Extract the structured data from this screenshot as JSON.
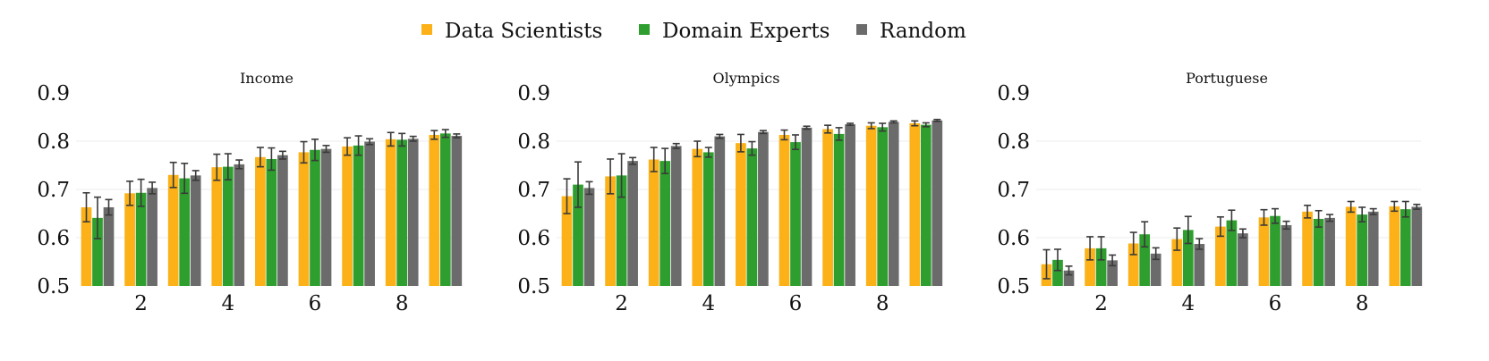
{
  "legend": [
    {
      "name": "Data Scientists",
      "color": "#FBB117"
    },
    {
      "name": "Domain Experts",
      "color": "#2E9F2E"
    },
    {
      "name": "Random",
      "color": "#6B6B6B"
    }
  ],
  "chart_data": [
    {
      "type": "bar",
      "title": "Income",
      "x": [
        1,
        2,
        3,
        4,
        5,
        6,
        7,
        8,
        9
      ],
      "xticks": [
        "2",
        "4",
        "6",
        "8"
      ],
      "yticks": [
        "0.5",
        "0.6",
        "0.7",
        "0.8",
        "0.9"
      ],
      "ylim": [
        0.5,
        0.9
      ],
      "grid": true,
      "legend_position": "top-center",
      "series": [
        {
          "name": "Data Scientists",
          "color": "#FBB117",
          "values": [
            0.663,
            0.692,
            0.73,
            0.746,
            0.767,
            0.777,
            0.789,
            0.804,
            0.813
          ],
          "errors": [
            0.03,
            0.025,
            0.026,
            0.027,
            0.02,
            0.022,
            0.018,
            0.014,
            0.009
          ]
        },
        {
          "name": "Domain Experts",
          "color": "#2E9F2E",
          "values": [
            0.641,
            0.693,
            0.723,
            0.747,
            0.763,
            0.782,
            0.791,
            0.803,
            0.816
          ],
          "errors": [
            0.043,
            0.028,
            0.031,
            0.027,
            0.023,
            0.022,
            0.02,
            0.013,
            0.008
          ]
        },
        {
          "name": "Random",
          "color": "#6B6B6B",
          "values": [
            0.663,
            0.703,
            0.729,
            0.752,
            0.771,
            0.784,
            0.799,
            0.805,
            0.811
          ],
          "errors": [
            0.016,
            0.012,
            0.01,
            0.009,
            0.008,
            0.007,
            0.006,
            0.005,
            0.004
          ]
        }
      ]
    },
    {
      "type": "bar",
      "title": "Olympics",
      "x": [
        1,
        2,
        3,
        4,
        5,
        6,
        7,
        8,
        9
      ],
      "xticks": [
        "2",
        "4",
        "6",
        "8"
      ],
      "yticks": [
        "0.5",
        "0.6",
        "0.7",
        "0.8",
        "0.9"
      ],
      "ylim": [
        0.5,
        0.9
      ],
      "grid": true,
      "series": [
        {
          "name": "Data Scientists",
          "color": "#FBB117",
          "values": [
            0.686,
            0.727,
            0.762,
            0.784,
            0.796,
            0.813,
            0.825,
            0.832,
            0.837
          ],
          "errors": [
            0.036,
            0.036,
            0.025,
            0.016,
            0.018,
            0.01,
            0.008,
            0.006,
            0.005
          ]
        },
        {
          "name": "Domain Experts",
          "color": "#2E9F2E",
          "values": [
            0.71,
            0.729,
            0.759,
            0.777,
            0.785,
            0.798,
            0.815,
            0.829,
            0.834
          ],
          "errors": [
            0.047,
            0.045,
            0.026,
            0.01,
            0.014,
            0.015,
            0.013,
            0.008,
            0.004
          ]
        },
        {
          "name": "Random",
          "color": "#6B6B6B",
          "values": [
            0.703,
            0.759,
            0.79,
            0.81,
            0.819,
            0.828,
            0.835,
            0.84,
            0.843
          ],
          "errors": [
            0.013,
            0.007,
            0.005,
            0.004,
            0.003,
            0.003,
            0.002,
            0.002,
            0.002
          ]
        }
      ]
    },
    {
      "type": "bar",
      "title": "Portuguese",
      "x": [
        1,
        2,
        3,
        4,
        5,
        6,
        7,
        8,
        9
      ],
      "xticks": [
        "2",
        "4",
        "6",
        "8"
      ],
      "yticks": [
        "0.5",
        "0.6",
        "0.7",
        "0.8",
        "0.9"
      ],
      "ylim": [
        0.5,
        0.9
      ],
      "grid": true,
      "series": [
        {
          "name": "Data Scientists",
          "color": "#FBB117",
          "values": [
            0.545,
            0.578,
            0.588,
            0.597,
            0.623,
            0.642,
            0.654,
            0.664,
            0.665
          ],
          "errors": [
            0.03,
            0.024,
            0.023,
            0.023,
            0.02,
            0.016,
            0.013,
            0.011,
            0.01
          ]
        },
        {
          "name": "Domain Experts",
          "color": "#2E9F2E",
          "values": [
            0.554,
            0.578,
            0.607,
            0.616,
            0.636,
            0.645,
            0.639,
            0.648,
            0.659
          ],
          "errors": [
            0.022,
            0.024,
            0.026,
            0.028,
            0.021,
            0.015,
            0.017,
            0.015,
            0.016
          ]
        },
        {
          "name": "Random",
          "color": "#6B6B6B",
          "values": [
            0.532,
            0.553,
            0.567,
            0.587,
            0.609,
            0.626,
            0.641,
            0.654,
            0.664
          ],
          "errors": [
            0.009,
            0.011,
            0.012,
            0.011,
            0.009,
            0.008,
            0.007,
            0.006,
            0.005
          ]
        }
      ]
    }
  ]
}
